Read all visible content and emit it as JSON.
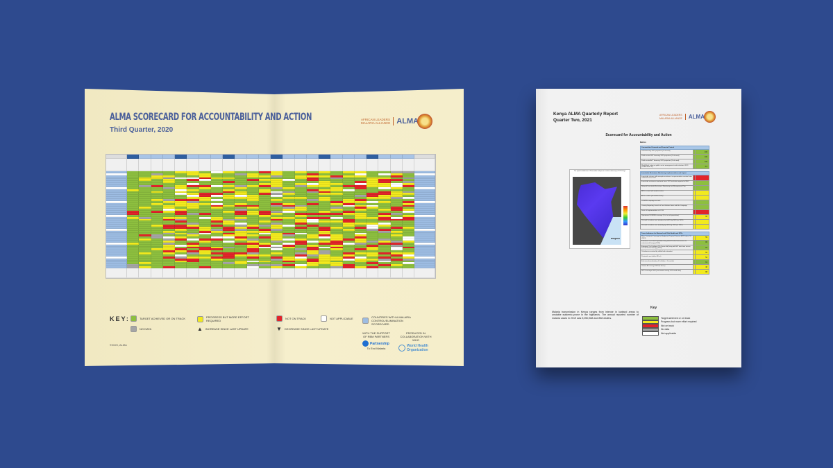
{
  "scorecard": {
    "title": "ALMA SCORECARD FOR ACCOUNTABILITY AND ACTION",
    "subtitle": "Third Quarter, 2020",
    "logo_text_1": "AFRICAN LEADERS",
    "logo_text_2": "MALARIA ALLIANCE",
    "logo_name": "ALMA",
    "key_heading": "KEY:",
    "key": [
      {
        "label": "TARGET ACHIEVED OR ON TRACK",
        "color": "#8dbf3f"
      },
      {
        "label": "PROGRESS BUT MORE EFFORT REQUIRED",
        "color": "#f2ea1e"
      },
      {
        "label": "NOT ON TRACK",
        "color": "#e2242a"
      },
      {
        "label": "NOT APPLICABLE",
        "color": "#ffffff"
      },
      {
        "label": "COUNTRIES WITH A MALARIA CONTROL/ELIMINATION SCORECARD",
        "color": "#9dbce2"
      },
      {
        "label": "NO DATA",
        "color": "#a5a5a5"
      },
      {
        "label": "INCREASE SINCE LAST UPDATE",
        "icon": "triangle-up"
      },
      {
        "label": "DECREASE SINCE LAST UPDATE",
        "icon": "triangle-down"
      }
    ],
    "copyright": "©2020, ALMA",
    "support_text": "WITH THE SUPPORT OF RBM PARTNERS",
    "rbm_name": "Partnership",
    "rbm_tag": "To End Malaria",
    "collab_text": "PRODUCED IN COLLABORATION WITH WHO",
    "who_name": "World Health Organization"
  },
  "report": {
    "title_1": "Kenya ALMA Quarterly Report",
    "title_2": "Quarter Two, 2021",
    "subtitle": "Scorecard for Accountability and Action",
    "metrics_label": "Metrics",
    "sections": [
      {
        "title": "Commodities Financed and Financial Control",
        "rows": [
          {
            "label": "LLIN financing 2021 projection (% of need)",
            "color": "#8dbf3f",
            "value": "100"
          },
          {
            "label": "Public sector RDT financing 2021 projection (% of need)",
            "color": "#8dbf3f",
            "value": "100"
          },
          {
            "label": "Public sector ACT financing 2021 projection (% of need)",
            "color": "#8dbf3f",
            "value": "100"
          },
          {
            "label": "World Bank rating on public sector management and institutions 2019 (CPIA Cluster D)",
            "color": "#8dbf3f",
            "value": "3.6"
          }
        ]
      },
      {
        "title": "Insecticide Resistance Monitoring, Implementation and Impact",
        "rows": [
          {
            "label": "Insecticide classes with mosquito resistance in representative sentinel sites confirmed since 2010",
            "color": "#e2242a",
            "value": ""
          },
          {
            "label": "Insecticide resistance monitored since 2015 and data reported to WHO",
            "color": "#8dbf3f",
            "value": ""
          },
          {
            "label": "National Insecticide Resistance Monitoring and Management Plan",
            "color": "#8dbf3f",
            "value": ""
          },
          {
            "label": "RDTs in stock (>6 months stock)",
            "color": "#f2ea1e",
            "value": ""
          },
          {
            "label": "ACTs in stock (>6 months stock)",
            "color": "#f2ea1e",
            "value": ""
          },
          {
            "label": "LLIN/IRS campaign on track",
            "color": "#8dbf3f",
            "value": ""
          },
          {
            "label": "Country Reporting Launch of Zero Malaria Starts with Me Campaign",
            "color": "#8dbf3f",
            "value": ""
          },
          {
            "label": "Scale of Implementation of iCCM",
            "color": "#e2242a",
            "value": ""
          },
          {
            "label": "Operational LLIN/IRS coverage (% of at risk population)",
            "color": "#f2ea1e",
            "value": "66"
          },
          {
            "label": "On track to reduce case incidence by ≥40% by 2020 (vs 2015)",
            "color": "#f2ea1e",
            "value": ""
          },
          {
            "label": "On track to reduce case mortality by ≥40% by 2020 (vs 2015)",
            "color": "#f2ea1e",
            "value": ""
          }
        ]
      },
      {
        "title": "Tracer Indicators for Maternal and Child Health and NTDs",
        "rows": [
          {
            "label": "Mass Treatment Coverage for Neglected Tropical Disease (NTD Index, %)(2019)",
            "color": "#f2ea1e",
            "value": "59"
          },
          {
            "label": "Estimated % of Total Population living with HIV who have access to antiretroviral therapy (2020)",
            "color": "#8dbf3f",
            "value": "86"
          },
          {
            "label": "Estimated % of children (0-14 years old) living with HIV who have access to antiretroviral therapy (2020)",
            "color": "#8dbf3f",
            "value": "84"
          },
          {
            "label": "% deliveries assisted by skilled birth attendant",
            "color": "#f2ea1e",
            "value": "62"
          },
          {
            "label": "Postnatal care (within 48 hrs)",
            "color": "#f2ea1e",
            "value": "53"
          },
          {
            "label": "Exclusive breastfeeding (% children < 6 months)",
            "color": "#8dbf3f",
            "value": "61"
          },
          {
            "label": "Vitamin A Coverage 2019 (2 doses)",
            "color": "#f2ea1e",
            "value": "38"
          },
          {
            "label": "DPT3 coverage 2020 (vaccination among 0-11 month olds)",
            "color": "#f2ea1e",
            "value": "88"
          }
        ]
      }
    ],
    "map_title": "The spatial distribution of Plasmodium falciparum malaria endemicity in 2017 Kenya",
    "map_brand": "mapoo",
    "description": "Malaria transmission in Kenya ranges from intense in lowland areas to unstable epidemic-prone in the highlands. The annual reported number of malaria cases in 2019 was 5,050,368 and 858 deaths.",
    "key_heading": "Key",
    "key": [
      {
        "label": "Target achieved or on track",
        "color": "#8dbf3f"
      },
      {
        "label": "Progress but more effort required",
        "color": "#f2ea1e"
      },
      {
        "label": "Not on track",
        "color": "#e2242a"
      },
      {
        "label": "No data",
        "color": "#a5a5a5"
      },
      {
        "label": "Not applicable",
        "color": "#ffffff"
      }
    ]
  },
  "colors": {
    "background": "#2e4a8e",
    "green": "#8dbf3f",
    "yellow": "#f2ea1e",
    "red": "#e2242a",
    "grey": "#a5a5a5",
    "blue": "#9dbce2"
  }
}
